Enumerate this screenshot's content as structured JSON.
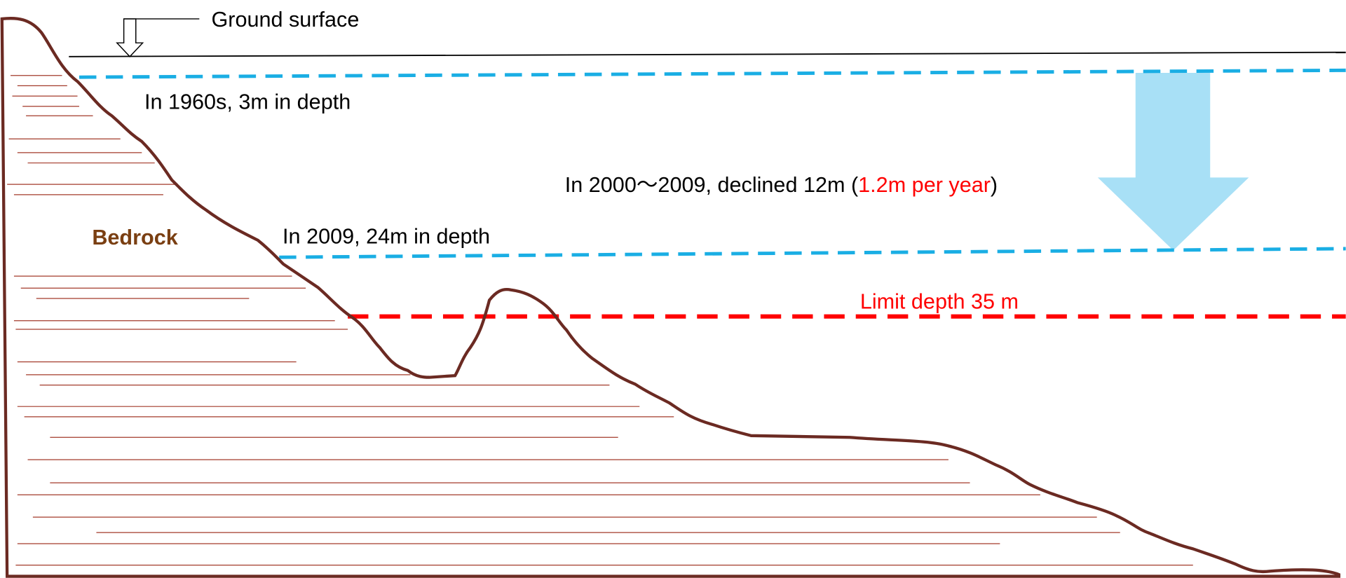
{
  "labels": {
    "ground_surface": "Ground surface",
    "level_1960s": "In 1960s, 3m in depth",
    "decline": {
      "prefix": "In 2000～2009, declined 12m (",
      "rate": "1.2m per year",
      "suffix": ")"
    },
    "bedrock": "Bedrock",
    "level_2009": "In 2009, 24m in depth",
    "limit": "Limit depth 35 m"
  }
}
